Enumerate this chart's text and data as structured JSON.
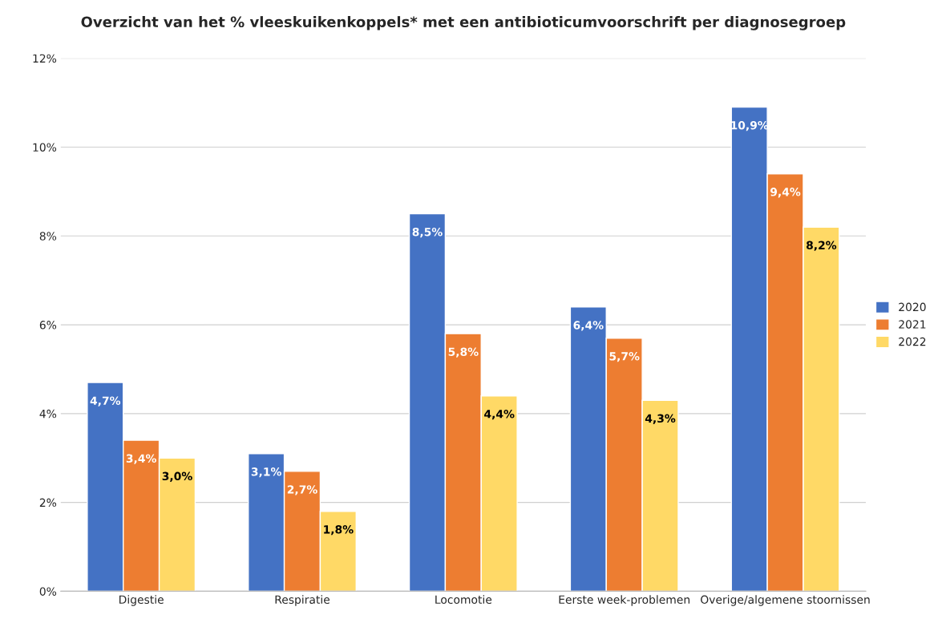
{
  "chart_data": {
    "type": "bar",
    "title": "Overzicht van het % vleeskuikenkoppels* met een antibioticumvoorschrift per diagnosegroep",
    "categories": [
      "Digestie",
      "Respiratie",
      "Locomotie",
      "Eerste week-problemen",
      "Overige/algemene stoornissen"
    ],
    "series": [
      {
        "name": "2020",
        "color": "#4472c4",
        "values": [
          4.7,
          3.1,
          8.5,
          6.4,
          10.9
        ],
        "value_labels": [
          "4,7%",
          "3,1%",
          "8,5%",
          "6,4%",
          "10,9%"
        ]
      },
      {
        "name": "2021",
        "color": "#ed7d31",
        "values": [
          3.4,
          2.7,
          5.8,
          5.7,
          9.4
        ],
        "value_labels": [
          "3,4%",
          "2,7%",
          "5,8%",
          "5,7%",
          "9,4%"
        ]
      },
      {
        "name": "2022",
        "color": "#ffd966",
        "values": [
          3.0,
          1.8,
          4.4,
          4.3,
          8.2
        ],
        "value_labels": [
          "3,0%",
          "1,8%",
          "4,4%",
          "4,3%",
          "8,2%"
        ]
      }
    ],
    "ylim": [
      0,
      12
    ],
    "yticks": [
      {
        "value": 0,
        "label": "0%"
      },
      {
        "value": 2,
        "label": "2%"
      },
      {
        "value": 4,
        "label": "4%"
      },
      {
        "value": 6,
        "label": "6%"
      },
      {
        "value": 8,
        "label": "8%"
      },
      {
        "value": 10,
        "label": "10%"
      },
      {
        "value": 12,
        "label": "12%"
      }
    ],
    "grid": "y",
    "legend": "right"
  }
}
